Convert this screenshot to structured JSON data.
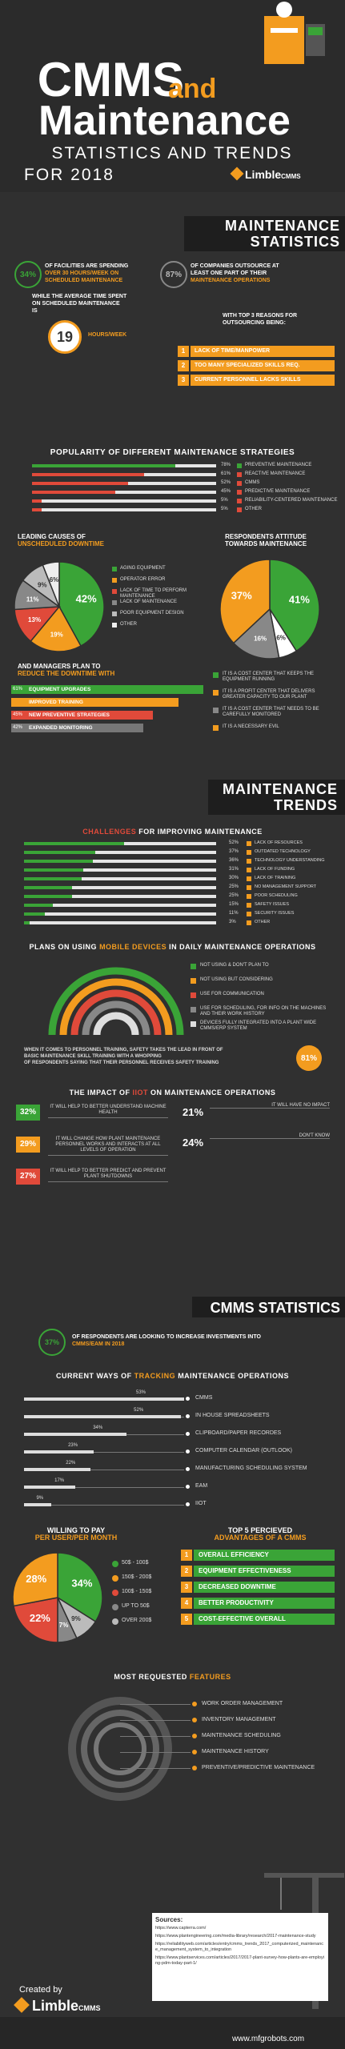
{
  "header": {
    "title_line1": "CMMS",
    "title_and": "and",
    "title_line2": "Maintenance",
    "subtitle1": "STATISTICS AND TRENDS",
    "subtitle2": "FOR 2018",
    "brand": "Limble",
    "brand_suffix": "CMMS"
  },
  "maintenance_stats": {
    "heading1": "MAINTENANCE",
    "heading2": "STATISTICS",
    "stat1_value": "34%",
    "stat1_text_a": "OF FACILITIES ARE SPENDING",
    "stat1_text_b": "OVER 30 HOURS/WEEK ON",
    "stat1_text_c": "SCHEDULED MAINTENANCE",
    "stat2_value": "87%",
    "stat2_text_a": "OF COMPANIES OUTSOURCE AT",
    "stat2_text_b": "LEAST ONE PART OF THEIR",
    "stat2_text_c": "MAINTENANCE OPERATIONS",
    "avg_text_a": "WHILE THE AVERAGE TIME SPENT",
    "avg_text_b": "ON SCHEDULED MAINTENANCE",
    "avg_text_c": "IS",
    "avg_value": "19",
    "avg_unit": "HOURS/WEEK",
    "reasons_intro_a": "WITH TOP 3 REASONS FOR",
    "reasons_intro_b": "OUTSOURCING BEING:",
    "reasons": [
      "LACK OF TIME/MANPOWER",
      "TOO MANY SPECIALIZED SKILLS REQ.",
      "CURRENT PERSONNEL LACKS SKILLS"
    ]
  },
  "strategies": {
    "title": "POPULARITY OF DIFFERENT MAINTENANCE STRATEGIES",
    "items": [
      {
        "pct": "78%",
        "label": "PREVENTIVE MAINTENANCE",
        "value": 78,
        "color": "#3aa437"
      },
      {
        "pct": "61%",
        "label": "REACTIVE MAINTENANCE",
        "value": 61,
        "color": "#e04a3a"
      },
      {
        "pct": "52%",
        "label": "CMMS",
        "value": 52,
        "color": "#e04a3a"
      },
      {
        "pct": "45%",
        "label": "PREDICTIVE MAINTENANCE",
        "value": 45,
        "color": "#e04a3a"
      },
      {
        "pct": "5%",
        "label": "RELIABILITY-CENTERED MAINTENANCE",
        "value": 5,
        "color": "#e04a3a"
      },
      {
        "pct": "5%",
        "label": "OTHER",
        "value": 5,
        "color": "#e04a3a"
      }
    ]
  },
  "downtime": {
    "title_a": "LEADING CAUSES OF",
    "title_b": "UNSCHEDULED DOWNTIME",
    "slices": [
      {
        "label": "AGING EQUIPMENT",
        "value": 42,
        "pct": "42%",
        "color": "#3aa437"
      },
      {
        "label": "OPERATOR ERROR",
        "value": 19,
        "pct": "19%",
        "color": "#f39c1f"
      },
      {
        "label": "LACK OF TIME TO PERFORM MAINTENANCE",
        "value": 13,
        "pct": "13%",
        "color": "#e04a3a"
      },
      {
        "label": "LACK OF MAINTENANCE",
        "value": 11,
        "pct": "11%",
        "color": "#888888"
      },
      {
        "label": "POOR EQUIPMENT DESIGN",
        "value": 9,
        "pct": "9%",
        "color": "#bbbbbb"
      },
      {
        "label": "OTHER",
        "value": 6,
        "pct": "6%",
        "color": "#eeeeee"
      }
    ],
    "plan_a": "AND MANAGERS PLAN TO",
    "plan_b": "REDUCE THE DOWNTIME WITH",
    "plans": [
      {
        "pct": "61%",
        "label": "EQUIPMENT UPGRADES",
        "value": 61,
        "color": "#3aa437"
      },
      {
        "pct": "",
        "label": "IMPROVED TRAINING",
        "value": 53,
        "color": "#f39c1f"
      },
      {
        "pct": "45%",
        "label": "NEW PREVENTIVE STRATEGIES",
        "value": 45,
        "color": "#e04a3a"
      },
      {
        "pct": "42%",
        "label": "EXPANDED MONITORING",
        "value": 42,
        "color": "#777777"
      }
    ]
  },
  "attitude": {
    "title_a": "RESPONDENTS ATTITUDE",
    "title_b": "TOWARDS MAINTENANCE",
    "slices": [
      {
        "label": "IT IS A COST CENTER THAT KEEPS THE EQUIPMENT RUNNING",
        "value": 41,
        "pct": "41%",
        "color": "#3aa437"
      },
      {
        "label": "IT IS A PROFIT CENTER THAT DELIVERS GREATER CAPACITY TO OUR PLANT",
        "value": 6,
        "pct": "6%",
        "color": "#ffffff"
      },
      {
        "label": "IT IS A COST CENTER THAT NEEDS TO BE CAREFULLY MONITORED",
        "value": 16,
        "pct": "16%",
        "color": "#888888"
      },
      {
        "label": "IT IS A NECESSARY EVIL",
        "value": 37,
        "pct": "37%",
        "color": "#f39c1f"
      }
    ]
  },
  "trends": {
    "heading1": "MAINTENANCE",
    "heading2": "TRENDS",
    "challenges_title_a": "CHALLENGES",
    "challenges_title_b": "FOR IMPROVING MAINTENANCE",
    "challenges": [
      {
        "pct": "52%",
        "label": "LACK OF RESOURCES",
        "value": 52
      },
      {
        "pct": "37%",
        "label": "OUTDATED TECHNOLOGY",
        "value": 37
      },
      {
        "pct": "36%",
        "label": "TECHNOLOGY UNDERSTANDING",
        "value": 36
      },
      {
        "pct": "31%",
        "label": "LACK OF FUNDING",
        "value": 31
      },
      {
        "pct": "30%",
        "label": "LACK OF TRAINING",
        "value": 30
      },
      {
        "pct": "25%",
        "label": "NO MANAGEMENT SUPPORT",
        "value": 25
      },
      {
        "pct": "25%",
        "label": "POOR SCHEDULING",
        "value": 25
      },
      {
        "pct": "15%",
        "label": "SAFETY ISSUES",
        "value": 15
      },
      {
        "pct": "11%",
        "label": "SECURITY ISSUES",
        "value": 11
      },
      {
        "pct": "3%",
        "label": "OTHER",
        "value": 3
      }
    ],
    "mobile_title_a": "PLANS ON USING",
    "mobile_title_b": "MOBILE DEVICES",
    "mobile_title_c": "IN DAILY MAINTENANCE OPERATIONS",
    "mobile_items": [
      {
        "label": "NOT USING & DON'T PLAN TO",
        "color": "#3aa437"
      },
      {
        "label": "NOT USING BUT CONSIDERING",
        "color": "#f39c1f"
      },
      {
        "label": "USE FOR COMMUNICATION",
        "color": "#e04a3a"
      },
      {
        "label": "USE FOR SCHEDULING, FOR INFO ON THE MACHINES AND THEIR WORK HISTORY",
        "color": "#888888"
      },
      {
        "label": "DEVICES FULLY INTEGRATED INTO A PLANT WIDE CMMS/ERP SYSTEM",
        "color": "#dddddd"
      }
    ],
    "training_text_a": "WHEN IT COMES TO PERSONNEL TRAINING, SAFETY TAKES THE LEAD IN FRONT OF",
    "training_text_b": "BASIC MAINTENANCE SKILL TRAINING WITH A WHOPPING",
    "training_text_c": "OF RESPONDENTS SAYING THAT THEIR PERSONNEL RECEIVES SAFETY TRAINING",
    "training_value": "81%",
    "iiot_title_a": "THE IMPACT OF",
    "iiot_title_b": "IIOT",
    "iiot_title_c": "ON MAINTENANCE OPERATIONS",
    "iiot": [
      {
        "pct": "32%",
        "text": "IT WILL HELP TO BETTER UNDERSTAND MACHINE HEALTH",
        "color": "#3aa437"
      },
      {
        "pct": "29%",
        "text": "IT WILL CHANGE HOW PLANT MAINTENANCE PERSONNEL WORKS AND INTERACTS AT ALL LEVELS OF OPERATION",
        "color": "#f39c1f"
      },
      {
        "pct": "27%",
        "text": "IT WILL HELP TO BETTER PREDICT AND PREVENT PLANT SHUTDOWNS",
        "color": "#e04a3a"
      }
    ],
    "iiot_right": [
      {
        "pct": "21%",
        "text": "IT WILL HAVE NO IMPACT"
      },
      {
        "pct": "24%",
        "text": "DON'T KNOW"
      }
    ]
  },
  "cmms": {
    "heading": "CMMS STATISTICS",
    "invest_value": "37%",
    "invest_text_a": "OF RESPONDENTS ARE LOOKING TO INCREASE INVESTMENTS INTO",
    "invest_text_b": "CMMS/EAM IN 2018",
    "tracking_title_a": "CURRENT WAYS OF",
    "tracking_title_b": "TRACKING",
    "tracking_title_c": "MAINTENANCE OPERATIONS",
    "tracking": [
      {
        "pct": "53%",
        "label": "CMMS",
        "value": 53
      },
      {
        "pct": "52%",
        "label": "IN HOUSE SPREADSHEETS",
        "value": 52
      },
      {
        "pct": "34%",
        "label": "CLIPBOARD/PAPER RECORDES",
        "value": 34
      },
      {
        "pct": "23%",
        "label": "COMPUTER CALENDAR (OUTLOOK)",
        "value": 23
      },
      {
        "pct": "22%",
        "label": "MANUFACTURING SCHEDULING SYSTEM",
        "value": 22
      },
      {
        "pct": "17%",
        "label": "EAM",
        "value": 17
      },
      {
        "pct": "9%",
        "label": "IIOT",
        "value": 9
      }
    ],
    "pay_title_a": "WILLING TO PAY",
    "pay_title_b": "PER USER/PER MONTH",
    "pay_slices": [
      {
        "label": "50$ - 100$",
        "value": 34,
        "pct": "34%",
        "color": "#3aa437"
      },
      {
        "label": "150$ - 200$",
        "value": 9,
        "pct": "9%",
        "color": "#bbbbbb"
      },
      {
        "label": "100$ - 150$",
        "value": 7,
        "pct": "7%",
        "color": "#888888"
      },
      {
        "label": "UP TO 50$",
        "value": 22,
        "pct": "22%",
        "color": "#e04a3a"
      },
      {
        "label": "OVER 200$",
        "value": 28,
        "pct": "28%",
        "color": "#f39c1f"
      }
    ],
    "pay_legend_colors": [
      "#3aa437",
      "#f39c1f",
      "#e04a3a",
      "#888888",
      "#bbbbbb"
    ],
    "pay_legend": [
      "50$ - 100$",
      "150$ - 200$",
      "100$ - 150$",
      "UP TO 50$",
      "OVER 200$"
    ],
    "adv_title_a": "TOP 5 PERCIEVED",
    "adv_title_b": "ADVANTAGES OF A CMMS",
    "advantages": [
      "OVERALL EFFICIENCY",
      "EQUIPMENT EFFECTIVENESS",
      "DECREASED DOWNTIME",
      "BETTER PRODUCTIVITY",
      "COST-EFFECTIVE OVERALL"
    ],
    "features_title_a": "MOST REQUESTED",
    "features_title_b": "FEATURES",
    "features": [
      "WORK ORDER MANAGEMENT",
      "INVENTORY MANAGEMENT",
      "MAINTENANCE SCHEDULING",
      "MAINTENANCE HISTORY",
      "PREVENTIVE/PREDICTIVE MAINTENANCE"
    ]
  },
  "footer": {
    "sources_title": "Sources:",
    "sources": [
      "https://www.capterra.com/",
      "https://www.plantengineering.com/media-library/research/2017-maintenance-study",
      "https://reliabilityweb.com/articles/entry/cmms_trends_2017_computerized_maintenance_management_system_to_integration",
      "https://www.plantservices.com/articles/2017/2017-plant-survey-how-plants-are-employing-pdm-today-part-1/"
    ],
    "created_by": "Created by",
    "brand": "Limble",
    "brand_suffix": "CMMS",
    "watermark": "www.mfgrobots.com"
  }
}
